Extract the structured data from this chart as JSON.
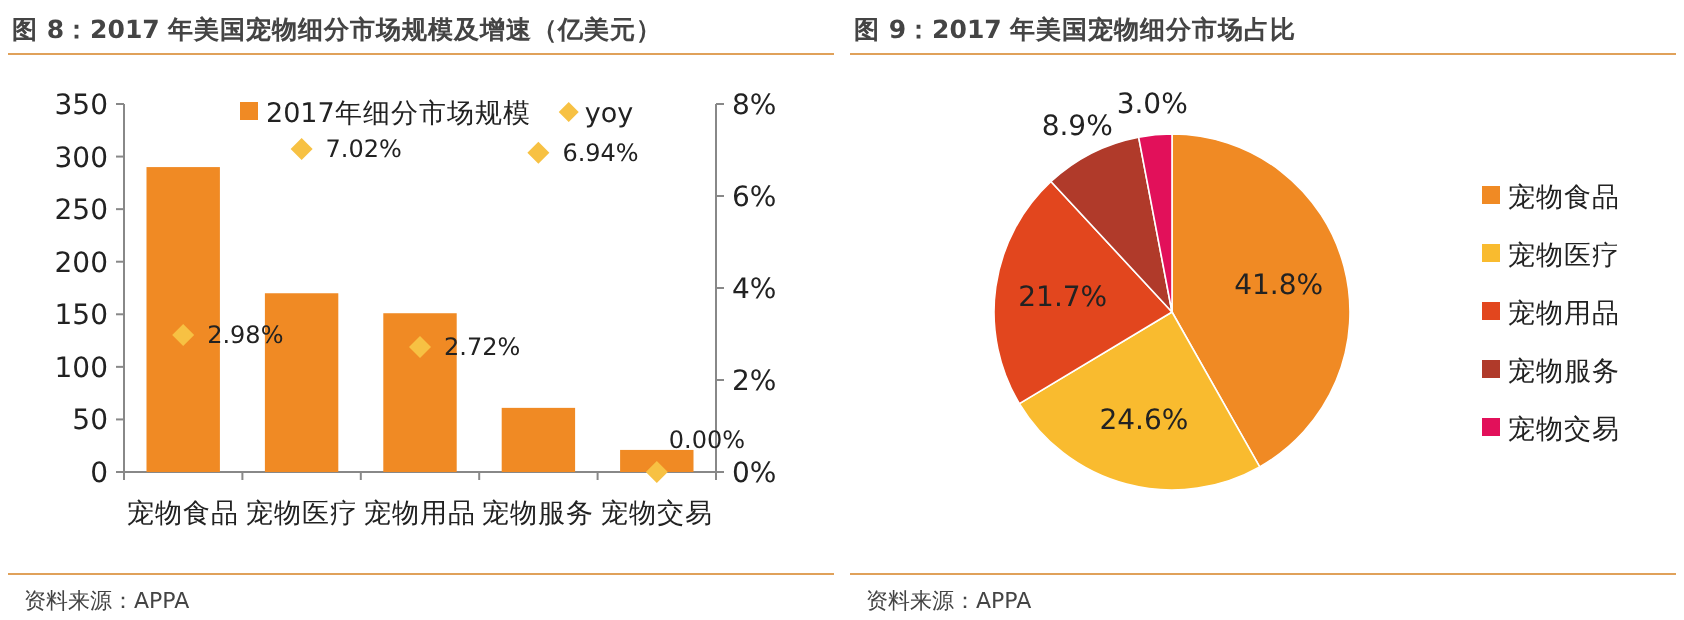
{
  "chart_data": [
    {
      "type": "bar",
      "title": "图 8：2017 年美国宠物细分市场规模及增速（亿美元）",
      "categories": [
        "宠物食品",
        "宠物医疗",
        "宠物用品",
        "宠物服务",
        "宠物交易"
      ],
      "series": [
        {
          "name": "2017年细分市场规模",
          "type": "bar",
          "color": "#f08a24",
          "values": [
            290,
            170,
            151,
            61,
            21
          ]
        },
        {
          "name": "yoy",
          "type": "scatter",
          "axis": "y2",
          "marker": "diamond",
          "color": "#f7c143",
          "values": [
            2.98,
            7.02,
            2.72,
            6.94,
            0.0
          ],
          "value_labels": [
            "2.98%",
            "7.02%",
            "2.72%",
            "6.94%",
            "0.00%"
          ]
        }
      ],
      "ylim": [
        0,
        350
      ],
      "yticks": [
        0,
        50,
        100,
        150,
        200,
        250,
        300,
        350
      ],
      "y2lim": [
        0,
        8
      ],
      "y2ticks": [
        {
          "value": 0,
          "label": "0%"
        },
        {
          "value": 2,
          "label": "2%"
        },
        {
          "value": 4,
          "label": "4%"
        },
        {
          "value": 6,
          "label": "6%"
        },
        {
          "value": 8,
          "label": "8%"
        }
      ],
      "grid": false,
      "legend": "top",
      "annotations": [
        "资料来源：APPA"
      ]
    },
    {
      "type": "pie",
      "title": "图 9：2017 年美国宠物细分市场占比",
      "categories": [
        "宠物食品",
        "宠物医疗",
        "宠物用品",
        "宠物服务",
        "宠物交易"
      ],
      "values": [
        41.8,
        24.6,
        21.7,
        8.9,
        3.0
      ],
      "value_labels": [
        "41.8%",
        "24.6%",
        "21.7%",
        "8.9%",
        "3.0%"
      ],
      "colors": [
        "#f08a24",
        "#f9bb2f",
        "#e2461e",
        "#b03a2a",
        "#e2105a"
      ],
      "legend": "right",
      "annotations": [
        "资料来源：APPA"
      ]
    }
  ]
}
